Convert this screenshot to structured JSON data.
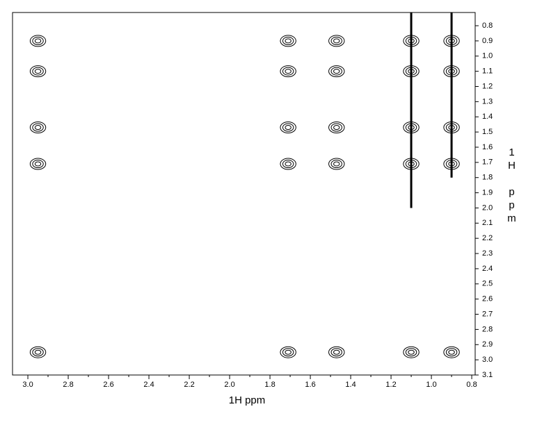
{
  "chart_data": {
    "type": "contour",
    "x_label": "1H ppm",
    "y_label": "1H ppm",
    "xlim": [
      3.076,
      0.783
    ],
    "ylim": [
      0.713,
      3.1
    ],
    "xticks": [
      {
        "value": 3.0,
        "label": "3.0"
      },
      2.8,
      2.6,
      2.4,
      2.2,
      {
        "value": 2.0,
        "label": "2.0"
      },
      1.8,
      1.6,
      1.4,
      1.2,
      {
        "value": 1.0,
        "label": "1.0"
      },
      0.8
    ],
    "yticks": [
      0.8,
      0.9,
      {
        "value": 1.0,
        "label": "1.0"
      },
      1.1,
      1.2,
      1.3,
      1.4,
      1.5,
      1.6,
      1.7,
      1.8,
      1.9,
      {
        "value": 2.0,
        "label": "2.0"
      },
      2.1,
      2.2,
      2.3,
      2.4,
      2.5,
      2.6,
      2.7,
      2.8,
      2.9,
      {
        "value": 3.0,
        "label": "3.0"
      },
      3.1
    ],
    "color": "#000000",
    "peaks": [
      {
        "x": 2.95,
        "y": 0.9
      },
      {
        "x": 2.95,
        "y": 1.1
      },
      {
        "x": 2.95,
        "y": 1.47
      },
      {
        "x": 2.95,
        "y": 1.71
      },
      {
        "x": 2.95,
        "y": 2.95
      },
      {
        "x": 1.71,
        "y": 0.9
      },
      {
        "x": 1.71,
        "y": 1.1
      },
      {
        "x": 1.71,
        "y": 1.47
      },
      {
        "x": 1.71,
        "y": 1.71
      },
      {
        "x": 1.71,
        "y": 2.95
      },
      {
        "x": 1.47,
        "y": 0.9
      },
      {
        "x": 1.47,
        "y": 1.1
      },
      {
        "x": 1.47,
        "y": 1.47
      },
      {
        "x": 1.47,
        "y": 1.71
      },
      {
        "x": 1.47,
        "y": 2.95
      },
      {
        "x": 1.1,
        "y": 0.9
      },
      {
        "x": 1.1,
        "y": 1.1
      },
      {
        "x": 1.1,
        "y": 1.47
      },
      {
        "x": 1.1,
        "y": 1.71
      },
      {
        "x": 1.1,
        "y": 2.95
      },
      {
        "x": 0.9,
        "y": 0.9
      },
      {
        "x": 0.9,
        "y": 1.1
      },
      {
        "x": 0.9,
        "y": 1.47
      },
      {
        "x": 0.9,
        "y": 1.71
      },
      {
        "x": 0.9,
        "y": 2.95
      }
    ],
    "ridges": [
      {
        "x": 1.1,
        "y": [
          0.713,
          2.0
        ]
      },
      {
        "x": 0.9,
        "y": [
          0.713,
          1.8
        ]
      }
    ]
  }
}
